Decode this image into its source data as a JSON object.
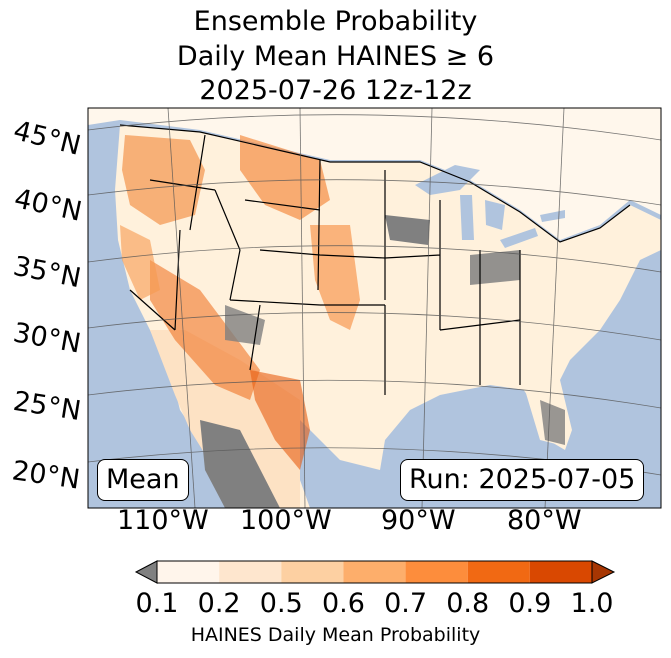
{
  "title": {
    "line1": "Ensemble Probability",
    "line2": "Daily Mean HAINES ≥ 6",
    "line3": "2025-07-26 12z-12z"
  },
  "map": {
    "lat_labels": [
      "45°N",
      "40°N",
      "35°N",
      "30°N",
      "25°N",
      "20°N"
    ],
    "lon_labels": [
      "110°W",
      "100°W",
      "90°W",
      "80°W"
    ],
    "ocean_color": "#b0c4de",
    "land_color": "#fff7ec",
    "missing_color": "#808080"
  },
  "annotations": {
    "left_box": "Mean",
    "right_box": "Run: 2025-07-05"
  },
  "colorbar": {
    "ticks": [
      "0.1",
      "0.2",
      "0.5",
      "0.6",
      "0.7",
      "0.8",
      "0.9",
      "1.0"
    ],
    "colors": [
      "#fff5eb",
      "#fee6ce",
      "#fdd0a2",
      "#fdae6b",
      "#fd8d3c",
      "#f16913",
      "#d94801",
      "#a63603"
    ],
    "under_color": "#808080",
    "label": "HAINES Daily Mean Probability"
  }
}
